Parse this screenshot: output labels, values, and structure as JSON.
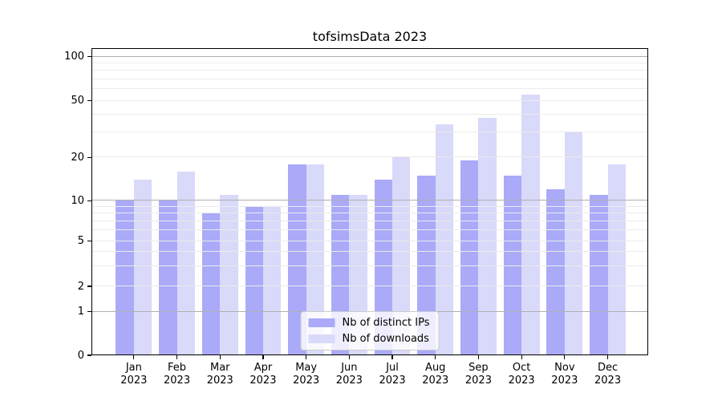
{
  "title": "tofsimsData 2023",
  "chart_data": {
    "type": "bar",
    "title": "tofsimsData 2023",
    "categories": [
      "Jan 2023",
      "Feb 2023",
      "Mar 2023",
      "Apr 2023",
      "May 2023",
      "Jun 2023",
      "Jul 2023",
      "Aug 2023",
      "Sep 2023",
      "Oct 2023",
      "Nov 2023",
      "Dec 2023"
    ],
    "series": [
      {
        "name": "Nb of distinct IPs",
        "color": "#aaaaf9",
        "values": [
          10,
          10,
          8,
          9,
          18,
          11,
          14,
          15,
          19,
          15,
          12,
          11
        ]
      },
      {
        "name": "Nb of downloads",
        "color": "#d9d9fa",
        "values": [
          14,
          16,
          11,
          9,
          18,
          11,
          20,
          34,
          38,
          55,
          30,
          18
        ]
      }
    ],
    "xlabel": "",
    "ylabel": "",
    "yscale": "log-like",
    "yticks": [
      0,
      1,
      2,
      5,
      10,
      20,
      50,
      100
    ],
    "ytick_labels": [
      "0",
      "1",
      "2",
      "5",
      "10",
      "20",
      "50",
      "100"
    ],
    "ylim": [
      0,
      110
    ],
    "grid": "horizontal; major gridlines at 1, 10, 100; minor log subdivisions",
    "legend_position": "lower center",
    "background": "#ffffff"
  }
}
